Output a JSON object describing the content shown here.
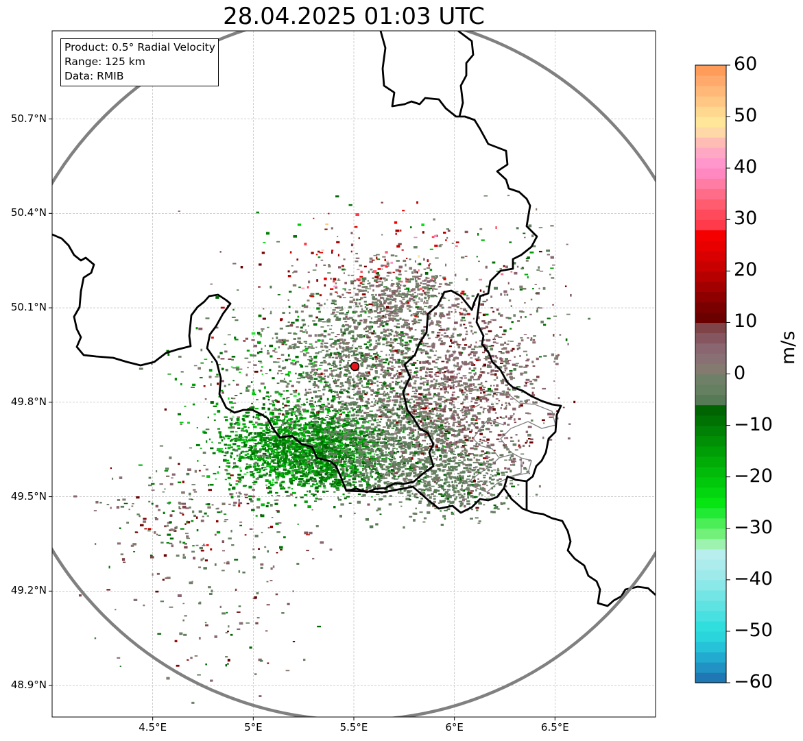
{
  "map": {
    "title": "28.04.2025 01:03 UTC",
    "info_box": {
      "product": "Product: 0.5° Radial Velocity",
      "range": "Range: 125 km",
      "data": "Data: RMIB"
    },
    "extent": {
      "lon_min": 4.0,
      "lon_max": 7.0,
      "lat_min": 48.8,
      "lat_max": 50.98
    },
    "lat_ticks": [
      {
        "value": 50.7,
        "label": "50.7°N"
      },
      {
        "value": 50.4,
        "label": "50.4°N"
      },
      {
        "value": 50.1,
        "label": "50.1°N"
      },
      {
        "value": 49.8,
        "label": "49.8°N"
      },
      {
        "value": 49.5,
        "label": "49.5°N"
      },
      {
        "value": 49.2,
        "label": "49.2°N"
      },
      {
        "value": 48.9,
        "label": "48.9°N"
      }
    ],
    "lon_ticks": [
      {
        "value": 4.5,
        "label": "4.5°E"
      },
      {
        "value": 5.0,
        "label": "5°E"
      },
      {
        "value": 5.5,
        "label": "5.5°E"
      },
      {
        "value": 6.0,
        "label": "6°E"
      },
      {
        "value": 6.5,
        "label": "6.5°E"
      }
    ],
    "radar_site": {
      "lon": 5.505,
      "lat": 49.914
    },
    "range_km": 125,
    "colors": {
      "range_ring": "#808080",
      "border": "#000000",
      "admin_border": "#808080",
      "grid": "#b0b0b0",
      "site": "#e8141b"
    }
  },
  "colorbar": {
    "unit": "m/s",
    "min": -60,
    "max": 60,
    "ticks": [
      {
        "value": 60,
        "label": "60"
      },
      {
        "value": 50,
        "label": "50"
      },
      {
        "value": 40,
        "label": "40"
      },
      {
        "value": 30,
        "label": "30"
      },
      {
        "value": 20,
        "label": "20"
      },
      {
        "value": 10,
        "label": "10"
      },
      {
        "value": 0,
        "label": "0"
      },
      {
        "value": -10,
        "label": "−10"
      },
      {
        "value": -20,
        "label": "−20"
      },
      {
        "value": -30,
        "label": "−30"
      },
      {
        "value": -40,
        "label": "−40"
      },
      {
        "value": -50,
        "label": "−50"
      },
      {
        "value": -60,
        "label": "−60"
      }
    ],
    "segments": [
      {
        "from": -60,
        "to": -58,
        "color": "#1f77b4"
      },
      {
        "from": -58,
        "to": -56,
        "color": "#2093c4"
      },
      {
        "from": -56,
        "to": -54,
        "color": "#23aad0"
      },
      {
        "from": -54,
        "to": -52,
        "color": "#26c2d8"
      },
      {
        "from": -52,
        "to": -50,
        "color": "#2ad6dc"
      },
      {
        "from": -50,
        "to": -48,
        "color": "#30dede"
      },
      {
        "from": -48,
        "to": -46,
        "color": "#48e0e0"
      },
      {
        "from": -46,
        "to": -44,
        "color": "#5ee2e2"
      },
      {
        "from": -44,
        "to": -42,
        "color": "#74e5e5"
      },
      {
        "from": -42,
        "to": -40,
        "color": "#8ae8e8"
      },
      {
        "from": -40,
        "to": -38,
        "color": "#9eeaea"
      },
      {
        "from": -38,
        "to": -36,
        "color": "#acecec"
      },
      {
        "from": -36,
        "to": -34,
        "color": "#b8eeee"
      },
      {
        "from": -34,
        "to": -32,
        "color": "#9ef2b0"
      },
      {
        "from": -32,
        "to": -30,
        "color": "#72f07a"
      },
      {
        "from": -30,
        "to": -28,
        "color": "#4cee58"
      },
      {
        "from": -28,
        "to": -26,
        "color": "#22ea34"
      },
      {
        "from": -26,
        "to": -24,
        "color": "#06e412"
      },
      {
        "from": -24,
        "to": -22,
        "color": "#03d60e"
      },
      {
        "from": -22,
        "to": -20,
        "color": "#02c80b"
      },
      {
        "from": -20,
        "to": -18,
        "color": "#01ba09"
      },
      {
        "from": -18,
        "to": -16,
        "color": "#01ac07"
      },
      {
        "from": -16,
        "to": -14,
        "color": "#009e06"
      },
      {
        "from": -14,
        "to": -12,
        "color": "#008f05"
      },
      {
        "from": -12,
        "to": -10,
        "color": "#008004"
      },
      {
        "from": -10,
        "to": -8,
        "color": "#007103"
      },
      {
        "from": -8,
        "to": -6,
        "color": "#006402"
      },
      {
        "from": -6,
        "to": -4,
        "color": "#567a55"
      },
      {
        "from": -4,
        "to": -2,
        "color": "#648060"
      },
      {
        "from": -2,
        "to": 0,
        "color": "#6f8068"
      },
      {
        "from": 0,
        "to": 2,
        "color": "#857a70"
      },
      {
        "from": 2,
        "to": 4,
        "color": "#897075"
      },
      {
        "from": 4,
        "to": 6,
        "color": "#8a6670"
      },
      {
        "from": 6,
        "to": 8,
        "color": "#855560"
      },
      {
        "from": 8,
        "to": 10,
        "color": "#7e4448"
      },
      {
        "from": 10,
        "to": 12,
        "color": "#6a0000"
      },
      {
        "from": 12,
        "to": 14,
        "color": "#7a0000"
      },
      {
        "from": 14,
        "to": 16,
        "color": "#8e0000"
      },
      {
        "from": 16,
        "to": 18,
        "color": "#a20000"
      },
      {
        "from": 18,
        "to": 20,
        "color": "#b60000"
      },
      {
        "from": 20,
        "to": 22,
        "color": "#c80000"
      },
      {
        "from": 22,
        "to": 24,
        "color": "#d80000"
      },
      {
        "from": 24,
        "to": 26,
        "color": "#e80000"
      },
      {
        "from": 26,
        "to": 28,
        "color": "#f50000"
      },
      {
        "from": 28,
        "to": 30,
        "color": "#ff3a4a"
      },
      {
        "from": 30,
        "to": 32,
        "color": "#ff4a5c"
      },
      {
        "from": 32,
        "to": 34,
        "color": "#ff5c70"
      },
      {
        "from": 34,
        "to": 36,
        "color": "#ff6c88"
      },
      {
        "from": 36,
        "to": 38,
        "color": "#ff7ca4"
      },
      {
        "from": 38,
        "to": 40,
        "color": "#ff88c0"
      },
      {
        "from": 40,
        "to": 42,
        "color": "#ff96cc"
      },
      {
        "from": 42,
        "to": 44,
        "color": "#ffa8c4"
      },
      {
        "from": 44,
        "to": 46,
        "color": "#ffbcb4"
      },
      {
        "from": 46,
        "to": 48,
        "color": "#ffd8a8"
      },
      {
        "from": 48,
        "to": 50,
        "color": "#ffe698"
      },
      {
        "from": 50,
        "to": 52,
        "color": "#ffd890"
      },
      {
        "from": 52,
        "to": 54,
        "color": "#ffc684"
      },
      {
        "from": 54,
        "to": 56,
        "color": "#ffb878"
      },
      {
        "from": 56,
        "to": 58,
        "color": "#ffaa6c"
      },
      {
        "from": 58,
        "to": 60,
        "color": "#ff9c5a"
      }
    ]
  },
  "precip_clusters": [
    {
      "lon": 5.18,
      "lat": 49.66,
      "sd_lon": 0.18,
      "sd_lat": 0.065,
      "count": 1500,
      "v": -13,
      "spread": 5
    },
    {
      "lon": 5.38,
      "lat": 49.64,
      "sd_lon": 0.14,
      "sd_lat": 0.06,
      "count": 900,
      "v": -11,
      "spread": 4
    },
    {
      "lon": 5.72,
      "lat": 49.66,
      "sd_lon": 0.18,
      "sd_lat": 0.09,
      "count": 1500,
      "v": -3,
      "spread": 2
    },
    {
      "lon": 5.5,
      "lat": 49.94,
      "sd_lon": 0.2,
      "sd_lat": 0.11,
      "count": 1300,
      "v": -2,
      "spread": 4
    },
    {
      "lon": 6.02,
      "lat": 49.84,
      "sd_lon": 0.2,
      "sd_lat": 0.13,
      "count": 1400,
      "v": 4,
      "spread": 4
    },
    {
      "lon": 5.72,
      "lat": 50.14,
      "sd_lon": 0.12,
      "sd_lat": 0.05,
      "count": 400,
      "v": 1,
      "spread": 3
    },
    {
      "lon": 6.02,
      "lat": 49.55,
      "sd_lon": 0.14,
      "sd_lat": 0.05,
      "count": 400,
      "v": -3,
      "spread": 2
    },
    {
      "lon": 5.0,
      "lat": 49.9,
      "sd_lon": 0.22,
      "sd_lat": 0.09,
      "count": 220,
      "v": -6,
      "spread": 10
    },
    {
      "lon": 4.7,
      "lat": 49.44,
      "sd_lon": 0.25,
      "sd_lat": 0.09,
      "count": 260,
      "v": 1,
      "spread": 8
    },
    {
      "lon": 5.5,
      "lat": 50.25,
      "sd_lon": 0.3,
      "sd_lat": 0.08,
      "count": 180,
      "v": 14,
      "spread": 14
    },
    {
      "lon": 6.3,
      "lat": 50.15,
      "sd_lon": 0.15,
      "sd_lat": 0.12,
      "count": 120,
      "v": -2,
      "spread": 6
    },
    {
      "lon": 4.85,
      "lat": 49.12,
      "sd_lon": 0.25,
      "sd_lat": 0.1,
      "count": 90,
      "v": 2,
      "spread": 6
    }
  ]
}
